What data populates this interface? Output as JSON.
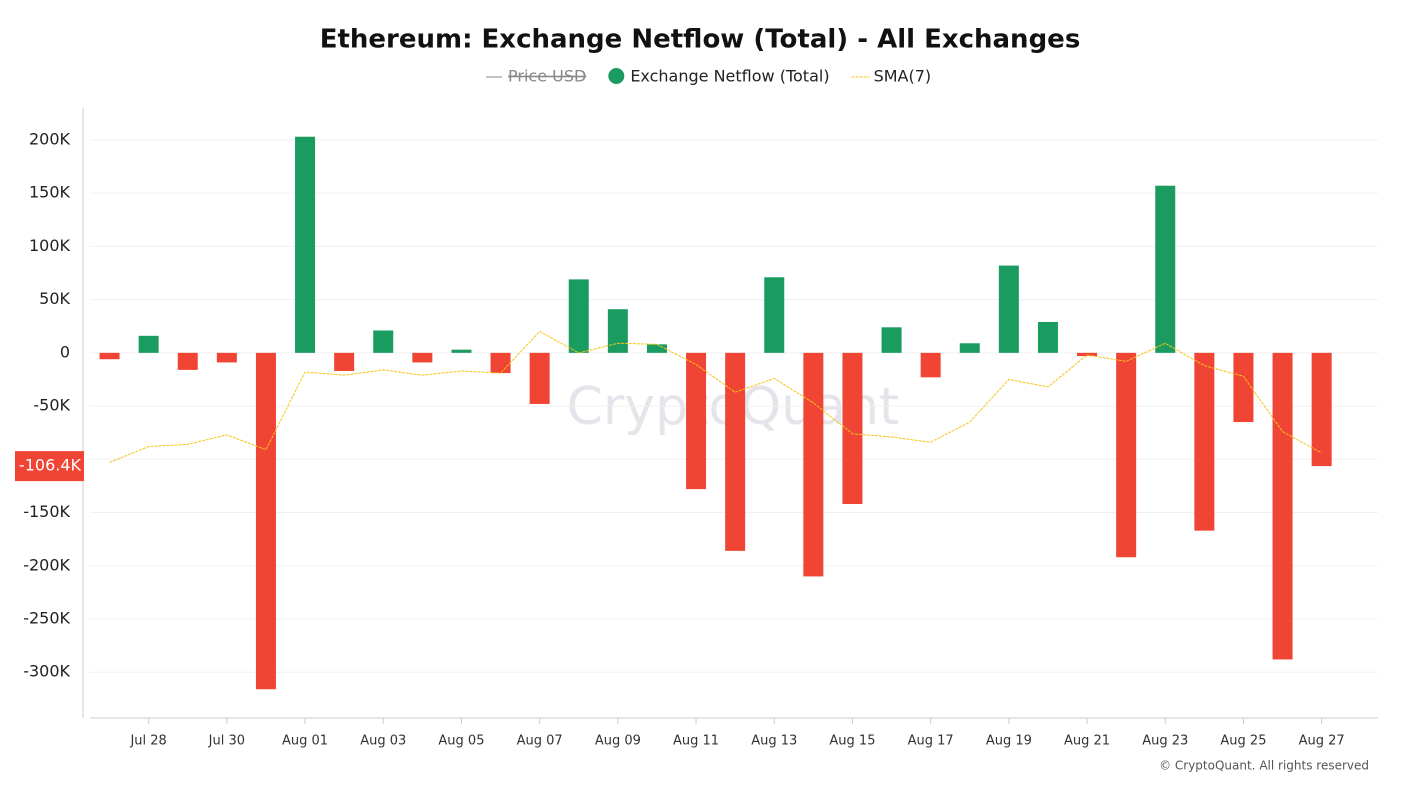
{
  "chart_data": {
    "type": "bar",
    "title": "Ethereum: Exchange Netflow (Total) - All Exchanges",
    "watermark": "CryptoQuant",
    "footer": "© CryptoQuant. All rights reserved",
    "categories": [
      null,
      "Jul 28",
      null,
      "Jul 30",
      null,
      "Aug 01",
      null,
      "Aug 03",
      null,
      "Aug 05",
      null,
      "Aug 07",
      null,
      "Aug 09",
      null,
      "Aug 11",
      null,
      "Aug 13",
      null,
      "Aug 15",
      null,
      "Aug 17",
      null,
      "Aug 19",
      null,
      "Aug 21",
      null,
      "Aug 23",
      null,
      "Aug 25",
      null,
      "Aug 27"
    ],
    "series": [
      {
        "name": "Price USD",
        "color": "#888888",
        "hidden": true
      },
      {
        "name": "Exchange Netflow (Total)",
        "type": "bar",
        "color": "#1a9b5f",
        "negative_color": "#f04434",
        "values": [
          -6000,
          16000,
          -16000,
          -9000,
          -316000,
          203000,
          -17000,
          21000,
          -9000,
          3000,
          -19000,
          -48000,
          69000,
          41000,
          8000,
          -128000,
          -186000,
          71000,
          -210000,
          -142000,
          24000,
          -23000,
          9000,
          82000,
          29000,
          -3000,
          -192000,
          157000,
          -167000,
          -65000,
          -288000,
          -106400
        ],
        "value_labels": [
          null,
          null,
          null,
          null,
          null,
          null,
          null,
          null,
          null,
          null,
          null,
          null,
          null,
          null,
          null,
          null,
          null,
          null,
          null,
          null,
          null,
          null,
          null,
          null,
          null,
          null,
          null,
          null,
          null,
          null,
          null,
          "-106.4K"
        ]
      },
      {
        "name": "SMA(7)",
        "type": "line",
        "color": "#f5c518",
        "values": [
          -103000,
          -88000,
          -86000,
          -77000,
          -91000,
          -18000,
          -21000,
          -16000,
          -21000,
          -17000,
          -19000,
          20000,
          0,
          9000,
          8000,
          -11000,
          -37000,
          -24000,
          -47000,
          -76000,
          -79000,
          -84000,
          -65000,
          -25000,
          -32000,
          -2000,
          -8000,
          9000,
          -12000,
          -22000,
          -74000,
          -94000
        ]
      }
    ],
    "ylim": [
      -343000,
      230000
    ],
    "yticks": [
      {
        "value": -300000,
        "label": "-300K"
      },
      {
        "value": -250000,
        "label": "-250K"
      },
      {
        "value": -200000,
        "label": "-200K"
      },
      {
        "value": -150000,
        "label": "-150K"
      },
      {
        "value": -100000,
        "label": "-100K"
      },
      {
        "value": -50000,
        "label": "-50K"
      },
      0,
      {
        "value": 50000,
        "label": "50K"
      },
      {
        "value": 100000,
        "label": "100K"
      },
      {
        "value": 150000,
        "label": "150K"
      },
      {
        "value": 200000,
        "label": "200K"
      }
    ],
    "grid": true
  }
}
